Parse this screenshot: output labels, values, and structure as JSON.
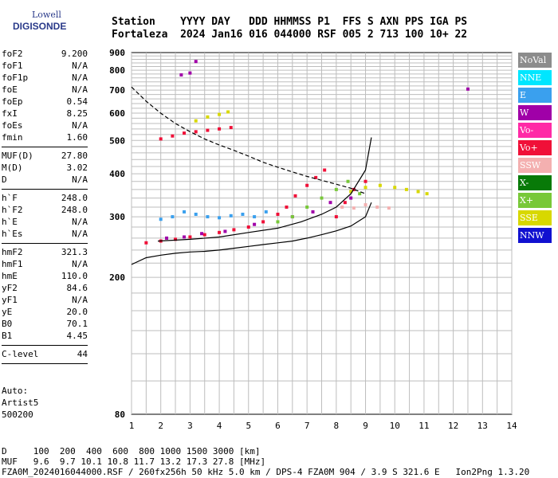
{
  "logo": {
    "line1": "Lowell",
    "line2": "DIGISONDE"
  },
  "header": {
    "line1": "Station    YYYY DAY   DDD HHMMSS P1  FFS S AXN PPS IGA PS",
    "line2": "Fortaleza  2024 Jan16 016 044000 RSF 005 2 713 100 10+ 22"
  },
  "params": {
    "group1": [
      {
        "label": "foF2",
        "value": "9.200"
      },
      {
        "label": "foF1",
        "value": "N/A"
      },
      {
        "label": "foF1p",
        "value": "N/A"
      },
      {
        "label": "foE",
        "value": "N/A"
      },
      {
        "label": "foEp",
        "value": "0.54"
      },
      {
        "label": "fxI",
        "value": "8.25"
      },
      {
        "label": "foEs",
        "value": "N/A"
      },
      {
        "label": "fmin",
        "value": "1.60"
      }
    ],
    "group2": [
      {
        "label": "MUF(D)",
        "value": "27.80"
      },
      {
        "label": "M(D)",
        "value": "3.02"
      },
      {
        "label": "D",
        "value": "N/A"
      }
    ],
    "group3": [
      {
        "label": "h`F",
        "value": "248.0"
      },
      {
        "label": "h`F2",
        "value": "248.0"
      },
      {
        "label": "h`E",
        "value": "N/A"
      },
      {
        "label": "h`Es",
        "value": "N/A"
      }
    ],
    "group4": [
      {
        "label": "hmF2",
        "value": "321.3"
      },
      {
        "label": "hmF1",
        "value": "N/A"
      },
      {
        "label": "hmE",
        "value": "110.0"
      },
      {
        "label": "yF2",
        "value": "84.6"
      },
      {
        "label": "yF1",
        "value": "N/A"
      },
      {
        "label": "yE",
        "value": "20.0"
      },
      {
        "label": "B0",
        "value": "70.1"
      },
      {
        "label": "B1",
        "value": "4.45"
      }
    ],
    "group5": [
      {
        "label": "C-level",
        "value": "44"
      }
    ]
  },
  "auto": {
    "line1": "Auto:",
    "line2": "Artist5",
    "line3": "500200"
  },
  "footer": {
    "d_line": "D     100  200  400  600  800 1000 1500 3000 [km]",
    "muf_line": "MUF   9.6  9.7 10.1 10.8 11.7 13.2 17.3 27.8 [MHz]",
    "file_line": "FZA0M_2024016044000.RSF / 260fx256h 50 kHz 5.0 km / DPS-4 FZA0M 904 / 3.9 S 321.6 E   Ion2Png 1.3.20"
  },
  "legend": [
    {
      "label": "NoVal",
      "color": "#8c8c8c"
    },
    {
      "label": "NNE",
      "color": "#00e6ff"
    },
    {
      "label": "E",
      "color": "#3aa0ee"
    },
    {
      "label": "W",
      "color": "#a000a8"
    },
    {
      "label": "Vo-",
      "color": "#ff2aa6"
    },
    {
      "label": "Vo+",
      "color": "#f01038"
    },
    {
      "label": "SSW",
      "color": "#f4b0b0"
    },
    {
      "label": "X-",
      "color": "#087a08"
    },
    {
      "label": "X+",
      "color": "#78c838"
    },
    {
      "label": "SSE",
      "color": "#d8d800"
    },
    {
      "label": "NNW",
      "color": "#1010d0"
    }
  ],
  "chart_data": {
    "type": "scatter",
    "title": "",
    "xlabel": "",
    "ylabel": "",
    "xlim": [
      1,
      14
    ],
    "ylim": [
      80,
      900
    ],
    "y_scale": "log",
    "x_ticks": [
      "1",
      "2",
      "3",
      "4",
      "5",
      "6",
      "7",
      "8",
      "9",
      "10",
      "11",
      "12",
      "13",
      "14"
    ],
    "y_ticks": [
      {
        "v": 900,
        "label": "900"
      },
      {
        "v": 800,
        "label": "800"
      },
      {
        "v": 700,
        "label": "700"
      },
      {
        "v": 600,
        "label": "600"
      },
      {
        "v": 500,
        "label": "500"
      },
      {
        "v": 400,
        "label": "400"
      },
      {
        "v": 300,
        "label": "300"
      },
      {
        "v": 200,
        "label": "200"
      },
      {
        "v": 80,
        "label": "80"
      }
    ],
    "grid": true,
    "series": [
      {
        "color": "#f01038",
        "points": [
          [
            1.5,
            252
          ],
          [
            2.0,
            255
          ],
          [
            2.5,
            258
          ],
          [
            3.0,
            262
          ],
          [
            3.5,
            266
          ],
          [
            4.0,
            270
          ],
          [
            4.5,
            275
          ],
          [
            5.0,
            280
          ],
          [
            5.5,
            290
          ],
          [
            6.0,
            305
          ],
          [
            6.3,
            320
          ],
          [
            6.6,
            345
          ],
          [
            7.0,
            370
          ],
          [
            7.3,
            390
          ],
          [
            7.6,
            410
          ],
          [
            8.0,
            300
          ],
          [
            8.3,
            330
          ],
          [
            8.6,
            360
          ],
          [
            9.0,
            380
          ]
        ]
      },
      {
        "color": "#a000a8",
        "points": [
          [
            2.2,
            260
          ],
          [
            2.8,
            262
          ],
          [
            3.4,
            268
          ],
          [
            4.2,
            272
          ],
          [
            5.2,
            285
          ],
          [
            6.5,
            300
          ],
          [
            7.2,
            310
          ],
          [
            7.8,
            330
          ],
          [
            8.5,
            340
          ]
        ]
      },
      {
        "color": "#3aa0ee",
        "points": [
          [
            2.0,
            295
          ],
          [
            2.4,
            300
          ],
          [
            2.8,
            310
          ],
          [
            3.2,
            305
          ],
          [
            3.6,
            300
          ],
          [
            4.0,
            298
          ],
          [
            4.4,
            302
          ],
          [
            4.8,
            305
          ],
          [
            5.2,
            300
          ],
          [
            5.6,
            310
          ]
        ]
      },
      {
        "color": "#78c838",
        "points": [
          [
            6.0,
            290
          ],
          [
            6.5,
            300
          ],
          [
            7.0,
            320
          ],
          [
            7.5,
            340
          ],
          [
            8.0,
            360
          ],
          [
            8.4,
            380
          ],
          [
            8.8,
            350
          ]
        ]
      },
      {
        "color": "#d8d800",
        "points": [
          [
            8.5,
            355
          ],
          [
            9.0,
            365
          ],
          [
            9.5,
            370
          ],
          [
            10.0,
            365
          ],
          [
            10.4,
            360
          ],
          [
            10.8,
            355
          ],
          [
            11.1,
            350
          ]
        ]
      },
      {
        "color": "#f4b0b0",
        "points": [
          [
            8.2,
            320
          ],
          [
            8.6,
            318
          ],
          [
            9.0,
            325
          ],
          [
            9.4,
            320
          ],
          [
            9.8,
            318
          ]
        ]
      },
      {
        "color": "#f01038",
        "points": [
          [
            2.0,
            505
          ],
          [
            2.4,
            515
          ],
          [
            2.8,
            525
          ],
          [
            3.2,
            530
          ],
          [
            3.6,
            535
          ],
          [
            4.0,
            540
          ],
          [
            4.4,
            545
          ]
        ]
      },
      {
        "color": "#d8d800",
        "points": [
          [
            3.2,
            570
          ],
          [
            3.6,
            585
          ],
          [
            4.0,
            595
          ],
          [
            4.3,
            605
          ]
        ]
      },
      {
        "color": "#a000a8",
        "points": [
          [
            3.2,
            848
          ],
          [
            3.0,
            785
          ],
          [
            2.7,
            775
          ],
          [
            12.5,
            705
          ]
        ]
      }
    ],
    "curves": [
      {
        "style": "dashed",
        "points": [
          [
            1,
            715
          ],
          [
            1.5,
            650
          ],
          [
            2.0,
            600
          ],
          [
            2.5,
            560
          ],
          [
            3.0,
            530
          ],
          [
            3.5,
            505
          ],
          [
            4.0,
            485
          ],
          [
            4.5,
            468
          ],
          [
            5.0,
            450
          ],
          [
            5.5,
            432
          ],
          [
            6.0,
            418
          ],
          [
            6.5,
            405
          ],
          [
            7.0,
            393
          ],
          [
            7.5,
            383
          ],
          [
            8.0,
            373
          ],
          [
            8.5,
            363
          ],
          [
            9.0,
            350
          ]
        ]
      },
      {
        "style": "solid",
        "points": [
          [
            1,
            218
          ],
          [
            1.5,
            228
          ],
          [
            2.0,
            232
          ],
          [
            2.5,
            235
          ],
          [
            3.0,
            237
          ],
          [
            3.5,
            238
          ],
          [
            4.0,
            240
          ],
          [
            4.5,
            243
          ],
          [
            5.0,
            246
          ],
          [
            5.5,
            249
          ],
          [
            6.0,
            252
          ],
          [
            6.5,
            255
          ],
          [
            7.0,
            260
          ],
          [
            7.5,
            266
          ],
          [
            8.0,
            273
          ],
          [
            8.5,
            282
          ],
          [
            9.0,
            300
          ],
          [
            9.2,
            330
          ]
        ]
      },
      {
        "style": "solid",
        "points": [
          [
            1.9,
            255
          ],
          [
            3.0,
            258
          ],
          [
            4.0,
            262
          ],
          [
            5.0,
            270
          ],
          [
            6.0,
            278
          ],
          [
            6.8,
            290
          ],
          [
            7.5,
            305
          ],
          [
            8.0,
            320
          ],
          [
            8.5,
            350
          ],
          [
            9.0,
            410
          ],
          [
            9.2,
            510
          ]
        ]
      }
    ]
  }
}
